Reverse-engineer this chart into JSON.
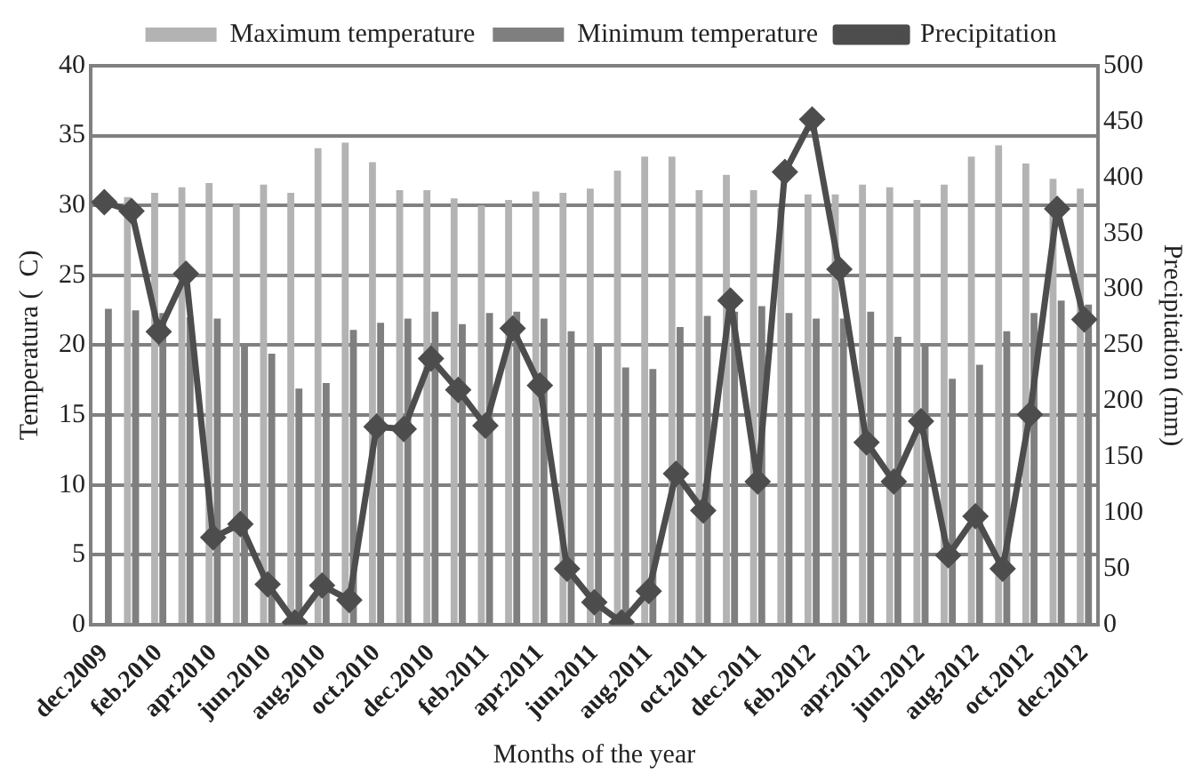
{
  "chart_data": {
    "type": "bar",
    "xlabel": "Months of the year",
    "ylabel": "Temperatura (  C)",
    "y2label": "Precipitation (mm)",
    "categories": [
      "dec.2009",
      null,
      "feb.2010",
      null,
      "apr.2010",
      null,
      "jun.2010",
      null,
      "aug.2010",
      null,
      "oct.2010",
      null,
      "dec.2010",
      null,
      "feb.2011",
      null,
      "apr.2011",
      null,
      "jun.2011",
      null,
      "aug.2011",
      null,
      "oct.2011",
      null,
      "dec.2011",
      null,
      "feb.2012",
      null,
      "apr.2012",
      null,
      "jun.2012",
      null,
      "aug.2012",
      null,
      "oct.2012",
      null,
      "dec.2012"
    ],
    "series": [
      {
        "name": "Maximum temperature",
        "color": "#b3b3b3",
        "values": [
          null,
          30.6,
          30.9,
          31.3,
          31.6,
          30.1,
          31.5,
          30.9,
          34.1,
          34.5,
          33.1,
          31.1,
          31.1,
          30.5,
          30.0,
          30.4,
          31.0,
          30.9,
          31.2,
          32.5,
          33.5,
          33.5,
          31.1,
          32.2,
          31.1,
          29.8,
          30.8,
          30.8,
          31.5,
          31.3,
          30.4,
          31.5,
          33.5,
          34.3,
          33.0,
          31.9,
          31.2
        ]
      },
      {
        "name": "Minimum temperature",
        "color": "#7f7f7f",
        "values": [
          22.6,
          22.5,
          22.3,
          22.0,
          21.9,
          20.0,
          19.4,
          16.9,
          17.3,
          21.1,
          21.6,
          21.9,
          22.4,
          21.5,
          22.3,
          22.4,
          21.9,
          21.0,
          20.0,
          18.4,
          18.3,
          21.3,
          22.1,
          22.4,
          22.8,
          22.3,
          21.9,
          21.9,
          22.4,
          20.6,
          20.0,
          17.6,
          18.6,
          21.0,
          22.3,
          23.2,
          22.9
        ]
      },
      {
        "name": "Precipitation",
        "type": "line",
        "axis": "y2",
        "color": "#4d4d4d",
        "values": [
          378,
          370,
          262,
          314,
          78,
          90,
          36,
          2,
          35,
          22,
          177,
          175,
          238,
          210,
          178,
          265,
          214,
          50,
          20,
          2,
          30,
          135,
          102,
          290,
          128,
          405,
          452,
          318,
          163,
          128,
          182,
          62,
          97,
          50,
          188,
          372,
          273
        ]
      }
    ],
    "ylim": [
      0,
      40
    ],
    "yticks": [
      0,
      5,
      10,
      15,
      20,
      25,
      30,
      35,
      40
    ],
    "y2lim": [
      0,
      500
    ],
    "y2ticks": [
      0,
      50,
      100,
      150,
      200,
      250,
      300,
      350,
      400,
      450,
      500
    ],
    "grid": "y",
    "legend": "top",
    "marker": "diamond",
    "line_style": "solid"
  }
}
